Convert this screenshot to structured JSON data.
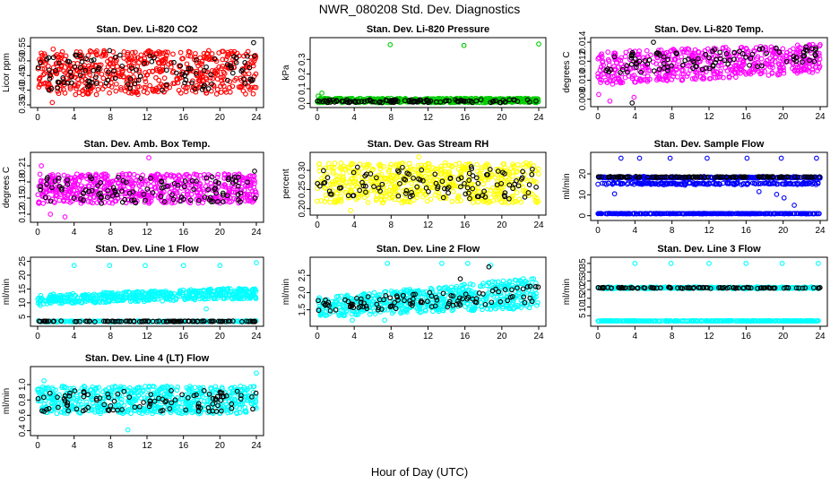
{
  "figure": {
    "title": "NWR_080208 Std. Dev. Diagnostics",
    "xlabel": "Hour of Day (UTC)"
  },
  "chart_data": [
    {
      "type": "scatter",
      "title": "Stan. Dev. Li-820 CO2",
      "ylabel": "Licor ppm",
      "xlim": [
        0,
        24
      ],
      "ylim": [
        0.35,
        0.57
      ],
      "xticks": [
        "0",
        "4",
        "8",
        "12",
        "16",
        "20",
        "24"
      ],
      "yticks": [
        0.35,
        0.4,
        0.45,
        0.5,
        0.55
      ],
      "ytick_labels": [
        "0.35",
        "0.40",
        "0.45",
        "0.50",
        "0.55"
      ],
      "series": [
        {
          "name": "all",
          "color": "#ff0000",
          "n": 550,
          "model": "uniform",
          "lo": 0.385,
          "hi": 0.535,
          "outliers": [
            [
              0.2,
              0.505
            ],
            [
              1.7,
              0.54
            ],
            [
              7.3,
              0.535
            ],
            [
              1.6,
              0.358
            ]
          ]
        },
        {
          "name": "hourly",
          "color": "#000000",
          "n": 110,
          "model": "uniform",
          "lo": 0.4,
          "hi": 0.52,
          "outliers": [
            [
              23.7,
              0.562
            ],
            [
              7.9,
              0.535
            ]
          ]
        }
      ]
    },
    {
      "type": "scatter",
      "title": "Stan. Dev. Li-820 Pressure",
      "ylabel": "kPa",
      "xlim": [
        0,
        24
      ],
      "ylim": [
        -0.01,
        0.43
      ],
      "xticks": [
        "0",
        "4",
        "8",
        "12",
        "16",
        "20",
        "24"
      ],
      "yticks": [
        0.0,
        0.1,
        0.2,
        0.3
      ],
      "ytick_labels": [
        "0.0",
        "0.1",
        "0.2",
        "0.3"
      ],
      "series": [
        {
          "name": "all",
          "color": "#00cc00",
          "n": 600,
          "model": "uniform",
          "lo": 0.005,
          "hi": 0.035,
          "outliers": [
            [
              7.9,
              0.4
            ],
            [
              15.9,
              0.395
            ],
            [
              24.0,
              0.405
            ],
            [
              0.5,
              0.07
            ],
            [
              0.1,
              0.05
            ]
          ]
        },
        {
          "name": "hourly",
          "color": "#000000",
          "n": 110,
          "model": "uniform",
          "lo": 0.005,
          "hi": 0.025,
          "outliers": []
        }
      ]
    },
    {
      "type": "scatter",
      "title": "Stan. Dev. Li-820 Temp.",
      "ylabel": "degrees C",
      "xlim": [
        0,
        24
      ],
      "ylim": [
        0.0075,
        0.0142
      ],
      "xticks": [
        "0",
        "4",
        "8",
        "12",
        "16",
        "20",
        "24"
      ],
      "yticks": [
        0.008,
        0.01,
        0.012,
        0.014
      ],
      "ytick_labels": [
        "0.008",
        "0.010",
        "0.012",
        "0.014"
      ],
      "series": [
        {
          "name": "all",
          "color": "#ff00ff",
          "n": 550,
          "model": "rising",
          "lo0": 0.0095,
          "hi0": 0.013,
          "lo1": 0.0108,
          "hi1": 0.0138,
          "outliers": [
            [
              1.3,
              0.0078
            ],
            [
              3.9,
              0.0082
            ],
            [
              0.1,
              0.0085
            ]
          ]
        },
        {
          "name": "hourly",
          "color": "#000000",
          "n": 100,
          "model": "rising",
          "lo0": 0.0105,
          "hi0": 0.0128,
          "lo1": 0.0118,
          "hi1": 0.0136,
          "outliers": [
            [
              6.0,
              0.014
            ],
            [
              3.7,
              0.0076
            ]
          ]
        }
      ]
    },
    {
      "type": "scatter",
      "title": "Stan. Dev. Amb. Box Temp.",
      "ylabel": "degrees C",
      "xlim": [
        0,
        24
      ],
      "ylim": [
        0.11,
        0.23
      ],
      "xticks": [
        "0",
        "4",
        "8",
        "12",
        "16",
        "20",
        "24"
      ],
      "yticks": [
        0.12,
        0.15,
        0.18,
        0.21
      ],
      "ytick_labels": [
        "0.12",
        "0.15",
        "0.18",
        "0.21"
      ],
      "series": [
        {
          "name": "all",
          "color": "#ff00ff",
          "n": 600,
          "model": "uniform",
          "lo": 0.14,
          "hi": 0.195,
          "outliers": [
            [
              12.2,
              0.225
            ],
            [
              0.4,
              0.21
            ],
            [
              1.4,
              0.12
            ],
            [
              3.0,
              0.115
            ]
          ]
        },
        {
          "name": "hourly",
          "color": "#000000",
          "n": 110,
          "model": "uniform",
          "lo": 0.14,
          "hi": 0.19,
          "outliers": [
            [
              23.8,
              0.2
            ]
          ]
        }
      ]
    },
    {
      "type": "scatter",
      "title": "Stan. Dev. Gas Stream RH",
      "ylabel": "percent",
      "xlim": [
        0,
        24
      ],
      "ylim": [
        0.19,
        0.34
      ],
      "xticks": [
        "0",
        "4",
        "8",
        "12",
        "16",
        "20",
        "24"
      ],
      "yticks": [
        0.2,
        0.25,
        0.3
      ],
      "ytick_labels": [
        "0.20",
        "0.25",
        "0.30"
      ],
      "series": [
        {
          "name": "all",
          "color": "#ffff00",
          "n": 600,
          "model": "uniform",
          "lo": 0.215,
          "hi": 0.32,
          "outliers": [
            [
              11.0,
              0.335
            ],
            [
              3.6,
              0.195
            ]
          ]
        },
        {
          "name": "hourly",
          "color": "#000000",
          "n": 110,
          "model": "uniform",
          "lo": 0.225,
          "hi": 0.31,
          "outliers": []
        }
      ]
    },
    {
      "type": "scatter",
      "title": "Stan. Dev. Sample Flow",
      "ylabel": "ml/min",
      "xlim": [
        0,
        24
      ],
      "ylim": [
        -1,
        29
      ],
      "xticks": [
        "0",
        "4",
        "8",
        "12",
        "16",
        "20",
        "24"
      ],
      "yticks": [
        0,
        10,
        20
      ],
      "ytick_labels": [
        "0",
        "10",
        "20"
      ],
      "series": [
        {
          "name": "upper band",
          "color": "#0000ff",
          "n": 300,
          "model": "band",
          "center": 18.3,
          "spread": 0.6,
          "outliers": [
            [
              2.5,
              27.5
            ],
            [
              4.5,
              27.5
            ],
            [
              7.8,
              27.5
            ],
            [
              11.8,
              27.5
            ],
            [
              16.1,
              27.5
            ],
            [
              19.8,
              27.5
            ],
            [
              23.6,
              27.5
            ]
          ]
        },
        {
          "name": "middle band",
          "color": "#0000ff",
          "n": 200,
          "model": "band",
          "center": 15.3,
          "spread": 0.8,
          "outliers": [
            [
              1.8,
              10.5
            ],
            [
              19.3,
              10.2
            ],
            [
              20.1,
              8.5
            ],
            [
              21.2,
              5.0
            ],
            [
              17.4,
              11.5
            ]
          ]
        },
        {
          "name": "baseline",
          "color": "#0000ff",
          "n": 300,
          "model": "band",
          "center": 1.0,
          "spread": 0.15,
          "outliers": []
        },
        {
          "name": "hourly",
          "color": "#000000",
          "n": 110,
          "model": "band",
          "center": 18.5,
          "spread": 0.35,
          "outliers": []
        }
      ]
    },
    {
      "type": "scatter",
      "title": "Stan. Dev. Line 1 Flow",
      "ylabel": "ml/min",
      "xlim": [
        0,
        24
      ],
      "ylim": [
        2.5,
        25.5
      ],
      "xticks": [
        "0",
        "4",
        "8",
        "12",
        "16",
        "20",
        "24"
      ],
      "yticks": [
        5,
        10,
        15,
        20,
        25
      ],
      "ytick_labels": [
        "5",
        "10",
        "15",
        "20",
        "25"
      ],
      "series": [
        {
          "name": "all",
          "color": "#00ffff",
          "n": 500,
          "model": "rising",
          "lo0": 9.5,
          "hi0": 13.0,
          "lo1": 11.5,
          "hi1": 15.5,
          "outliers": [
            [
              4.0,
              23.5
            ],
            [
              7.9,
              23.5
            ],
            [
              11.8,
              23.5
            ],
            [
              16.0,
              23.5
            ],
            [
              20.0,
              23.5
            ],
            [
              24.0,
              24.5
            ],
            [
              18.5,
              7.8
            ],
            [
              0.3,
              9.0
            ]
          ]
        },
        {
          "name": "baseline",
          "color": "#00ffff",
          "n": 200,
          "model": "band",
          "center": 3.3,
          "spread": 0.25,
          "outliers": []
        },
        {
          "name": "hourly",
          "color": "#000000",
          "n": 110,
          "model": "band",
          "center": 3.3,
          "spread": 0.2,
          "outliers": []
        }
      ]
    },
    {
      "type": "scatter",
      "title": "Stan. Dev. Line 2 Flow",
      "ylabel": "ml/min",
      "xlim": [
        0,
        24
      ],
      "ylim": [
        1.1,
        2.95
      ],
      "xticks": [
        "0",
        "4",
        "8",
        "12",
        "16",
        "20",
        "24"
      ],
      "yticks": [
        1.5,
        2.0,
        2.5
      ],
      "ytick_labels": [
        "1.5",
        "2.0",
        "2.5"
      ],
      "series": [
        {
          "name": "all",
          "color": "#00ffff",
          "n": 600,
          "model": "rising",
          "lo0": 1.3,
          "hi0": 1.85,
          "lo1": 1.55,
          "hi1": 2.45,
          "outliers": [
            [
              7.6,
              2.85
            ],
            [
              13.5,
              2.85
            ],
            [
              16.3,
              2.85
            ],
            [
              18.8,
              2.8
            ],
            [
              3.8,
              1.2
            ],
            [
              7.3,
              1.2
            ]
          ]
        },
        {
          "name": "hourly",
          "color": "#000000",
          "n": 110,
          "model": "rising",
          "lo0": 1.4,
          "hi0": 1.8,
          "lo1": 1.7,
          "hi1": 2.2,
          "outliers": [
            [
              18.6,
              2.75
            ],
            [
              15.5,
              2.4
            ]
          ]
        }
      ]
    },
    {
      "type": "scatter",
      "title": "Stan. Dev. Line 3 Flow",
      "ylabel": "ml/min",
      "xlim": [
        0,
        24
      ],
      "ylim": [
        0.5,
        37
      ],
      "xticks": [
        "0",
        "4",
        "8",
        "12",
        "16",
        "20",
        "24"
      ],
      "yticks": [
        5,
        10,
        15,
        20,
        25,
        30,
        35
      ],
      "ytick_labels": [
        "5",
        "10",
        "15",
        "20",
        "25",
        "30",
        "35"
      ],
      "series": [
        {
          "name": "band",
          "color": "#00ffff",
          "n": 350,
          "model": "band",
          "center": 21.0,
          "spread": 0.7,
          "outliers": [
            [
              4.0,
              35
            ],
            [
              7.9,
              35
            ],
            [
              12.0,
              35
            ],
            [
              16.0,
              35
            ],
            [
              19.9,
              35
            ],
            [
              23.8,
              35
            ]
          ]
        },
        {
          "name": "baseline",
          "color": "#00ffff",
          "n": 350,
          "model": "band",
          "center": 2.0,
          "spread": 0.2,
          "outliers": []
        },
        {
          "name": "hourly",
          "color": "#000000",
          "n": 100,
          "model": "band",
          "center": 21.0,
          "spread": 0.5,
          "outliers": []
        }
      ]
    },
    {
      "type": "scatter",
      "title": "Stan. Dev. Line 4 (LT) Flow",
      "ylabel": "ml/min",
      "xlim": [
        0,
        24
      ],
      "ylim": [
        0.37,
        1.2
      ],
      "xticks": [
        "0",
        "4",
        "8",
        "12",
        "16",
        "20",
        "24"
      ],
      "yticks": [
        0.4,
        0.6,
        0.8,
        1.0
      ],
      "ytick_labels": [
        "0.4",
        "0.6",
        "0.8",
        "1.0"
      ],
      "series": [
        {
          "name": "all",
          "color": "#00ffff",
          "n": 600,
          "model": "uniform",
          "lo": 0.62,
          "hi": 0.98,
          "outliers": [
            [
              24.0,
              1.15
            ],
            [
              9.9,
              0.41
            ],
            [
              0.7,
              1.05
            ]
          ]
        },
        {
          "name": "hourly",
          "color": "#000000",
          "n": 100,
          "model": "uniform",
          "lo": 0.65,
          "hi": 0.93,
          "outliers": []
        }
      ]
    }
  ]
}
